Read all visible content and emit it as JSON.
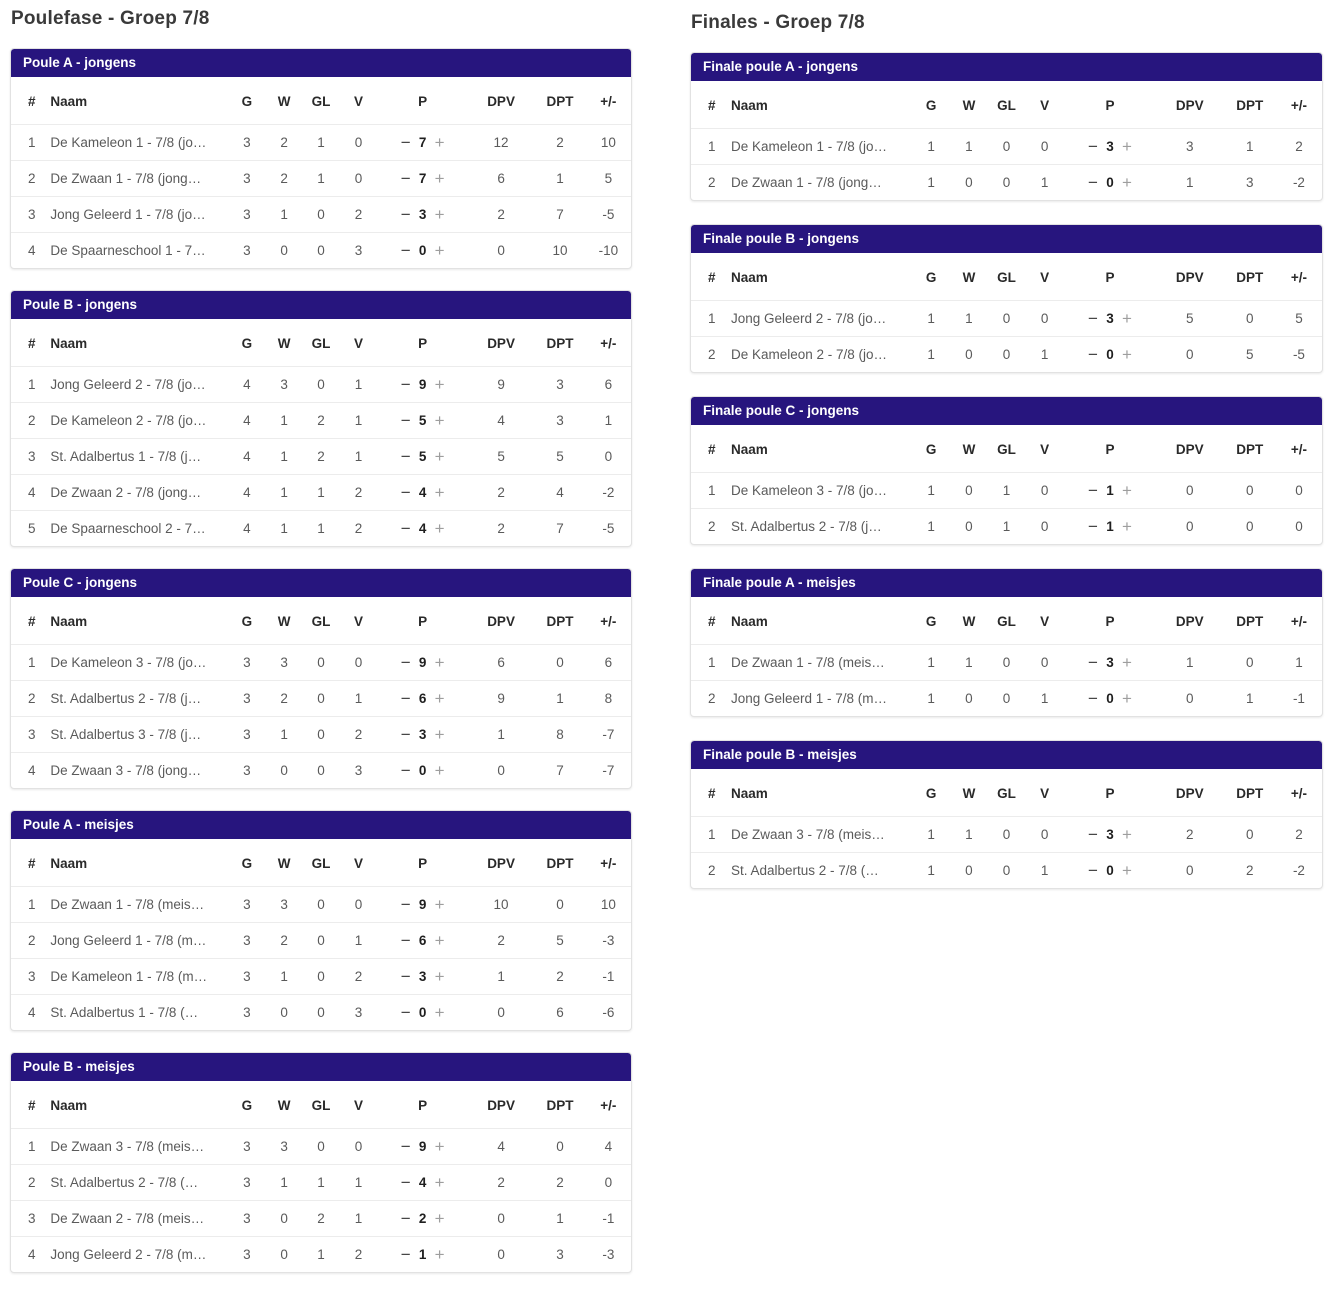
{
  "colors": {
    "header_bar": "#27157E",
    "header_bar_text": "#ffffff",
    "minus_icon": "#424242",
    "plus_icon": "#9e9e9e"
  },
  "icons": {
    "minus": "−",
    "plus": "+"
  },
  "columns": {
    "headers": [
      "#",
      "Naam",
      "G",
      "W",
      "GL",
      "V",
      "P",
      "DPV",
      "DPT",
      "+/-"
    ]
  },
  "left_section": {
    "title": "Poulefase - Groep 7/8",
    "tables": [
      {
        "title": "Poule A - jongens",
        "rows": [
          {
            "rank": "1",
            "name": "De Kameleon 1 - 7/8 (jo…",
            "g": "3",
            "w": "2",
            "gl": "1",
            "v": "0",
            "p": "7",
            "dpv": "12",
            "dpt": "2",
            "diff": "10"
          },
          {
            "rank": "2",
            "name": "De Zwaan 1 - 7/8 (jong…",
            "g": "3",
            "w": "2",
            "gl": "1",
            "v": "0",
            "p": "7",
            "dpv": "6",
            "dpt": "1",
            "diff": "5"
          },
          {
            "rank": "3",
            "name": "Jong Geleerd 1 - 7/8 (jo…",
            "g": "3",
            "w": "1",
            "gl": "0",
            "v": "2",
            "p": "3",
            "dpv": "2",
            "dpt": "7",
            "diff": "-5"
          },
          {
            "rank": "4",
            "name": "De Spaarneschool 1 - 7…",
            "g": "3",
            "w": "0",
            "gl": "0",
            "v": "3",
            "p": "0",
            "dpv": "0",
            "dpt": "10",
            "diff": "-10"
          }
        ]
      },
      {
        "title": "Poule B - jongens",
        "rows": [
          {
            "rank": "1",
            "name": "Jong Geleerd 2 - 7/8 (jo…",
            "g": "4",
            "w": "3",
            "gl": "0",
            "v": "1",
            "p": "9",
            "dpv": "9",
            "dpt": "3",
            "diff": "6"
          },
          {
            "rank": "2",
            "name": "De Kameleon 2 - 7/8 (jo…",
            "g": "4",
            "w": "1",
            "gl": "2",
            "v": "1",
            "p": "5",
            "dpv": "4",
            "dpt": "3",
            "diff": "1"
          },
          {
            "rank": "3",
            "name": "St. Adalbertus 1 - 7/8 (j…",
            "g": "4",
            "w": "1",
            "gl": "2",
            "v": "1",
            "p": "5",
            "dpv": "5",
            "dpt": "5",
            "diff": "0"
          },
          {
            "rank": "4",
            "name": "De Zwaan 2 - 7/8 (jong…",
            "g": "4",
            "w": "1",
            "gl": "1",
            "v": "2",
            "p": "4",
            "dpv": "2",
            "dpt": "4",
            "diff": "-2"
          },
          {
            "rank": "5",
            "name": "De Spaarneschool 2 - 7…",
            "g": "4",
            "w": "1",
            "gl": "1",
            "v": "2",
            "p": "4",
            "dpv": "2",
            "dpt": "7",
            "diff": "-5"
          }
        ]
      },
      {
        "title": "Poule C - jongens",
        "rows": [
          {
            "rank": "1",
            "name": "De Kameleon 3 - 7/8 (jo…",
            "g": "3",
            "w": "3",
            "gl": "0",
            "v": "0",
            "p": "9",
            "dpv": "6",
            "dpt": "0",
            "diff": "6"
          },
          {
            "rank": "2",
            "name": "St. Adalbertus 2 - 7/8 (j…",
            "g": "3",
            "w": "2",
            "gl": "0",
            "v": "1",
            "p": "6",
            "dpv": "9",
            "dpt": "1",
            "diff": "8"
          },
          {
            "rank": "3",
            "name": "St. Adalbertus 3 - 7/8 (j…",
            "g": "3",
            "w": "1",
            "gl": "0",
            "v": "2",
            "p": "3",
            "dpv": "1",
            "dpt": "8",
            "diff": "-7"
          },
          {
            "rank": "4",
            "name": "De Zwaan 3 - 7/8 (jong…",
            "g": "3",
            "w": "0",
            "gl": "0",
            "v": "3",
            "p": "0",
            "dpv": "0",
            "dpt": "7",
            "diff": "-7"
          }
        ]
      },
      {
        "title": "Poule A - meisjes",
        "rows": [
          {
            "rank": "1",
            "name": "De Zwaan 1 - 7/8 (meis…",
            "g": "3",
            "w": "3",
            "gl": "0",
            "v": "0",
            "p": "9",
            "dpv": "10",
            "dpt": "0",
            "diff": "10"
          },
          {
            "rank": "2",
            "name": "Jong Geleerd 1 - 7/8 (m…",
            "g": "3",
            "w": "2",
            "gl": "0",
            "v": "1",
            "p": "6",
            "dpv": "2",
            "dpt": "5",
            "diff": "-3"
          },
          {
            "rank": "3",
            "name": "De Kameleon 1 - 7/8 (m…",
            "g": "3",
            "w": "1",
            "gl": "0",
            "v": "2",
            "p": "3",
            "dpv": "1",
            "dpt": "2",
            "diff": "-1"
          },
          {
            "rank": "4",
            "name": "St. Adalbertus 1 - 7/8 (…",
            "g": "3",
            "w": "0",
            "gl": "0",
            "v": "3",
            "p": "0",
            "dpv": "0",
            "dpt": "6",
            "diff": "-6"
          }
        ]
      },
      {
        "title": "Poule B - meisjes",
        "rows": [
          {
            "rank": "1",
            "name": "De Zwaan 3 - 7/8 (meis…",
            "g": "3",
            "w": "3",
            "gl": "0",
            "v": "0",
            "p": "9",
            "dpv": "4",
            "dpt": "0",
            "diff": "4"
          },
          {
            "rank": "2",
            "name": "St. Adalbertus 2 - 7/8 (…",
            "g": "3",
            "w": "1",
            "gl": "1",
            "v": "1",
            "p": "4",
            "dpv": "2",
            "dpt": "2",
            "diff": "0"
          },
          {
            "rank": "3",
            "name": "De Zwaan 2 - 7/8 (meis…",
            "g": "3",
            "w": "0",
            "gl": "2",
            "v": "1",
            "p": "2",
            "dpv": "0",
            "dpt": "1",
            "diff": "-1"
          },
          {
            "rank": "4",
            "name": "Jong Geleerd 2 - 7/8 (m…",
            "g": "3",
            "w": "0",
            "gl": "1",
            "v": "2",
            "p": "1",
            "dpv": "0",
            "dpt": "3",
            "diff": "-3"
          }
        ]
      }
    ]
  },
  "right_section": {
    "title": "Finales - Groep 7/8",
    "tables": [
      {
        "title": "Finale poule A - jongens",
        "rows": [
          {
            "rank": "1",
            "name": "De Kameleon 1 - 7/8 (jo…",
            "g": "1",
            "w": "1",
            "gl": "0",
            "v": "0",
            "p": "3",
            "dpv": "3",
            "dpt": "1",
            "diff": "2"
          },
          {
            "rank": "2",
            "name": "De Zwaan 1 - 7/8 (jong…",
            "g": "1",
            "w": "0",
            "gl": "0",
            "v": "1",
            "p": "0",
            "dpv": "1",
            "dpt": "3",
            "diff": "-2"
          }
        ]
      },
      {
        "title": "Finale poule B - jongens",
        "rows": [
          {
            "rank": "1",
            "name": "Jong Geleerd 2 - 7/8 (jo…",
            "g": "1",
            "w": "1",
            "gl": "0",
            "v": "0",
            "p": "3",
            "dpv": "5",
            "dpt": "0",
            "diff": "5"
          },
          {
            "rank": "2",
            "name": "De Kameleon 2 - 7/8 (jo…",
            "g": "1",
            "w": "0",
            "gl": "0",
            "v": "1",
            "p": "0",
            "dpv": "0",
            "dpt": "5",
            "diff": "-5"
          }
        ]
      },
      {
        "title": "Finale poule C - jongens",
        "rows": [
          {
            "rank": "1",
            "name": "De Kameleon 3 - 7/8 (jo…",
            "g": "1",
            "w": "0",
            "gl": "1",
            "v": "0",
            "p": "1",
            "dpv": "0",
            "dpt": "0",
            "diff": "0"
          },
          {
            "rank": "2",
            "name": "St. Adalbertus 2 - 7/8 (j…",
            "g": "1",
            "w": "0",
            "gl": "1",
            "v": "0",
            "p": "1",
            "dpv": "0",
            "dpt": "0",
            "diff": "0"
          }
        ]
      },
      {
        "title": "Finale poule A - meisjes",
        "rows": [
          {
            "rank": "1",
            "name": "De Zwaan 1 - 7/8 (meis…",
            "g": "1",
            "w": "1",
            "gl": "0",
            "v": "0",
            "p": "3",
            "dpv": "1",
            "dpt": "0",
            "diff": "1"
          },
          {
            "rank": "2",
            "name": "Jong Geleerd 1 - 7/8 (m…",
            "g": "1",
            "w": "0",
            "gl": "0",
            "v": "1",
            "p": "0",
            "dpv": "0",
            "dpt": "1",
            "diff": "-1"
          }
        ]
      },
      {
        "title": "Finale poule B - meisjes",
        "rows": [
          {
            "rank": "1",
            "name": "De Zwaan 3 - 7/8 (meis…",
            "g": "1",
            "w": "1",
            "gl": "0",
            "v": "0",
            "p": "3",
            "dpv": "2",
            "dpt": "0",
            "diff": "2"
          },
          {
            "rank": "2",
            "name": "St. Adalbertus 2 - 7/8 (…",
            "g": "1",
            "w": "0",
            "gl": "0",
            "v": "1",
            "p": "0",
            "dpv": "0",
            "dpt": "2",
            "diff": "-2"
          }
        ]
      }
    ]
  }
}
